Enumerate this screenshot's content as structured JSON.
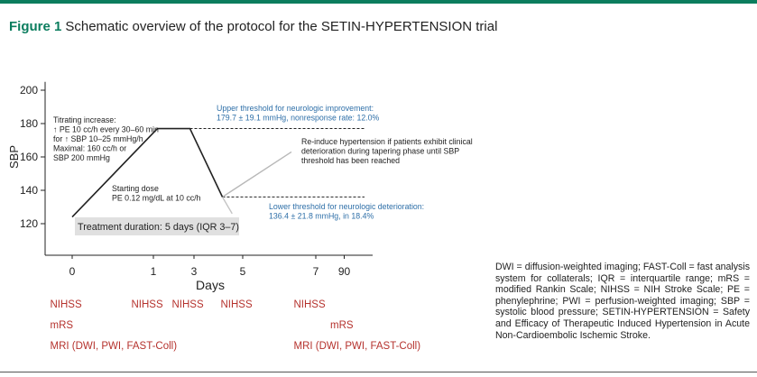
{
  "figure": {
    "number": "Figure 1",
    "title": "Schematic overview of the protocol for the SETIN-HYPERTENSION trial",
    "abbreviations": "DWI = diffusion-weighted imaging; FAST-Coll = fast analysis system for collaterals; IQR = interquartile range; mRS = modified Rankin Scale; NIHSS = NIH Stroke Scale; PE = phenylephrine; PWI = perfusion-weighted imaging; SBP = systolic blood pressure; SETIN-HYPERTENSION = Safety and Efficacy of Therapeutic Induced Hypertension in Acute Non-Cardioembolic Ischemic Stroke."
  },
  "colors": {
    "accent": "#0b7d5e",
    "threshold_text": "#2e6fa8",
    "assessment_text": "#b5322d",
    "duration_box": "#e0e0e0"
  },
  "chart_data": {
    "type": "line",
    "xlabel": "Days",
    "ylabel": "SBP",
    "y_ticks": [
      120,
      140,
      160,
      180,
      200
    ],
    "ylim": [
      113,
      205
    ],
    "x_ticks": [
      {
        "label": "0",
        "pos": 0
      },
      {
        "label": "1",
        "pos": 1
      },
      {
        "label": "3",
        "pos": 1.5
      },
      {
        "label": "5",
        "pos": 2.1
      },
      {
        "label": "7",
        "pos": 3.0
      },
      {
        "label": "90",
        "pos": 3.35
      }
    ],
    "xlim": [
      -0.2,
      3.7
    ],
    "bp_curve": {
      "x": [
        0,
        1.05,
        1.45,
        1.85
      ],
      "y": [
        124,
        177,
        177,
        136
      ]
    },
    "reinduce_curve": {
      "x": [
        1.85,
        2.7
      ],
      "y": [
        136,
        163
      ]
    },
    "faded_curve": {
      "x": [
        1.85,
        1.97
      ],
      "y": [
        136,
        126
      ]
    },
    "upper_threshold": {
      "y": 177,
      "x_start": 1.45,
      "x_end": 3.6
    },
    "lower_threshold": {
      "y": 136,
      "x_start": 1.85,
      "x_end": 3.6
    },
    "annotations": {
      "titrating": [
        "Titrating increase:",
        "↑ PE 10 cc/h  every 30–60 min",
        "for ↑ SBP 10–25 mmHg/h",
        "Maximal: 160 cc/h or",
        "SBP 200 mmHg"
      ],
      "starting": [
        "Starting dose",
        "PE 0.12 mg/dL at 10 cc/h"
      ],
      "duration": "Treatment duration: 5 days (IQR 3–7)",
      "upper": [
        "Upper threshold for neurologic improvement:",
        "179.7 ± 19.1 mmHg, nonresponse rate: 12.0%"
      ],
      "reinduce": [
        "Re-induce hypertension if patients exhibit clinical",
        "deterioration during tapering phase until SBP",
        "threshold has been reached"
      ],
      "lower": [
        "Lower threshold for neurologic deterioration:",
        "136.4 ± 21.8 mmHg, in 18.4%"
      ]
    },
    "assessments": [
      {
        "label": "NIHSS",
        "pos": -0.05,
        "row": 0
      },
      {
        "label": "NIHSS",
        "pos": 0.95,
        "row": 0
      },
      {
        "label": "NIHSS",
        "pos": 1.45,
        "row": 0
      },
      {
        "label": "NIHSS",
        "pos": 2.05,
        "row": 0
      },
      {
        "label": "NIHSS",
        "pos": 2.95,
        "row": 0
      },
      {
        "label": "mRS",
        "pos": -0.05,
        "row": 1
      },
      {
        "label": "mRS",
        "pos": 3.4,
        "row": 1
      },
      {
        "label": "MRI (DWI, PWI, FAST-Coll)",
        "pos": -0.05,
        "row": 2
      },
      {
        "label": "MRI (DWI, PWI, FAST-Coll)",
        "pos": 2.95,
        "row": 2
      }
    ]
  }
}
